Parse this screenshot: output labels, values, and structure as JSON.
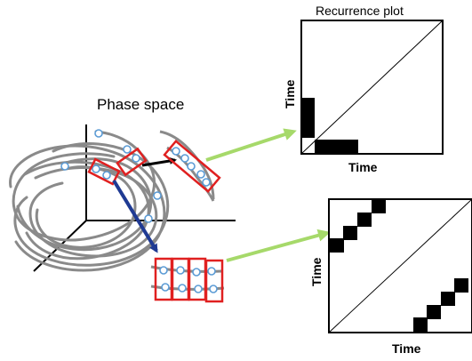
{
  "labels": {
    "phase_space": "Phase space",
    "recurrence_plot": "Recurrence plot",
    "top_plot_x": "Time",
    "top_plot_y": "Time",
    "bottom_plot_x": "Time",
    "bottom_plot_y": "Time"
  },
  "colors": {
    "trajectory": "#8a8a8a",
    "state_point": "#5b9bd5",
    "neighborhood_box": "#e02020",
    "black_arrow": "#000000",
    "blue_arrow": "#1f3a93",
    "green_arrow": "#a6d96a",
    "recurrence_cell": "#000000"
  }
}
